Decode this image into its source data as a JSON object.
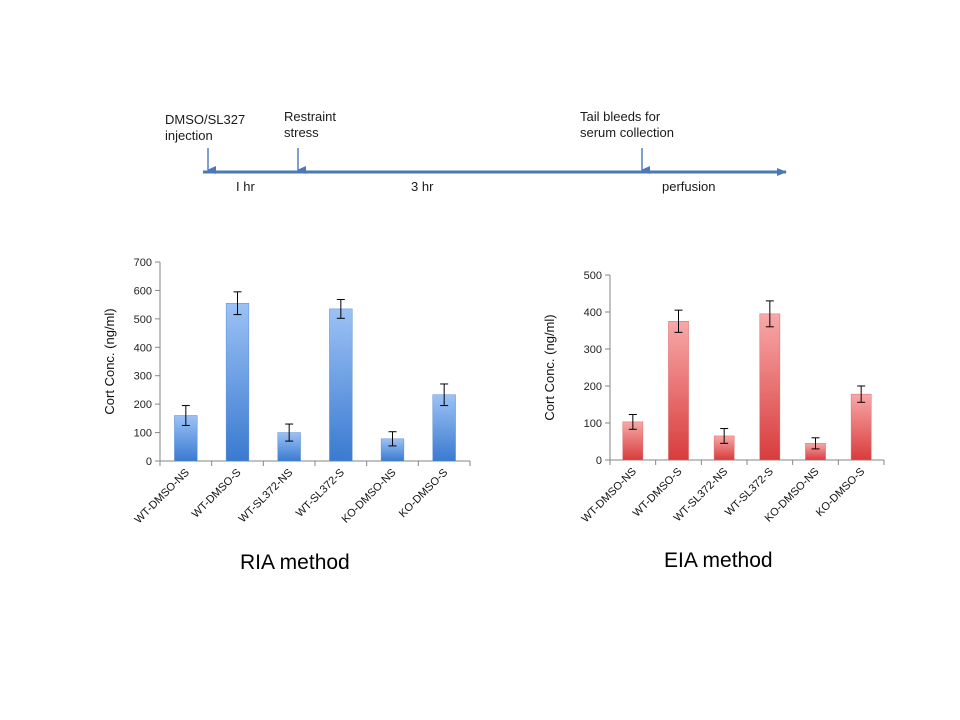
{
  "timeline": {
    "events": [
      {
        "line1": "DMSO/SL327",
        "line2": "injection"
      },
      {
        "line1": "Restraint",
        "line2": "stress"
      },
      {
        "line1": "Tail bleeds for",
        "line2": "serum collection"
      }
    ],
    "intervals": [
      "I hr",
      "3 hr",
      "perfusion"
    ],
    "colors": {
      "axis": "#4a78b8"
    }
  },
  "chart_data": [
    {
      "type": "bar",
      "ylabel": "Cort Conc. (ng/ml)",
      "caption": "RIA method",
      "ylim": [
        0,
        700
      ],
      "yticks": [
        0,
        100,
        200,
        300,
        400,
        500,
        600,
        700
      ],
      "categories": [
        "WT-DMSO-NS",
        "WT-DMSO-S",
        "WT-SL372-NS",
        "WT-SL372-S",
        "KO-DMSO-NS",
        "KO-DMSO-S"
      ],
      "values": [
        160,
        555,
        100,
        535,
        78,
        233
      ],
      "errors": [
        35,
        40,
        30,
        33,
        25,
        38
      ],
      "colors": {
        "top": "#9cc2f5",
        "bottom": "#3a7ad0",
        "edge": "#5a8ad0"
      }
    },
    {
      "type": "bar",
      "ylabel": "Cort Conc. (ng/ml)",
      "caption": "EIA method",
      "ylim": [
        0,
        500
      ],
      "yticks": [
        0,
        100,
        200,
        300,
        400,
        500
      ],
      "categories": [
        "WT-DMSO-NS",
        "WT-DMSO-S",
        "WT-SL372-NS",
        "WT-SL372-S",
        "KO-DMSO-NS",
        "KO-DMSO-S"
      ],
      "values": [
        103,
        375,
        65,
        395,
        45,
        178
      ],
      "errors": [
        20,
        30,
        20,
        35,
        15,
        22
      ],
      "colors": {
        "top": "#f8a8a8",
        "bottom": "#d83c3c",
        "edge": "#d86a6a"
      }
    }
  ]
}
